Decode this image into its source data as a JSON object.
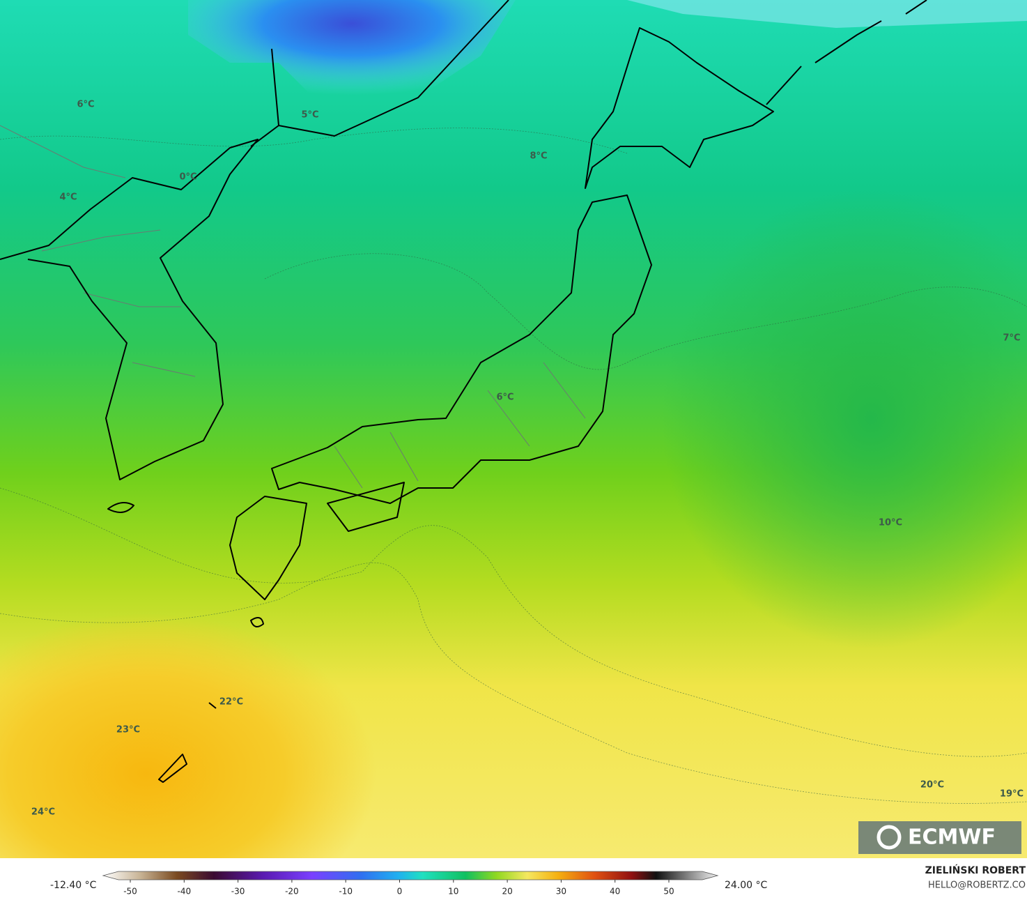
{
  "map": {
    "labels": [
      "6°C",
      "5°C",
      "0°C",
      "4°C",
      "8°C",
      "6°C",
      "7°C",
      "10°C",
      "22°C",
      "23°C",
      "24°C",
      "20°C",
      "19°C"
    ],
    "logo": "ECMWF"
  },
  "colorbar": {
    "min_label": "-12.40 °C",
    "max_label": "24.00 °C",
    "ticks": [
      -50,
      -40,
      -30,
      -20,
      -10,
      0,
      10,
      20,
      30,
      40,
      50
    ]
  },
  "credit": {
    "author": "ZIELIŃSKI ROBERT",
    "contact": "HELLO@ROBERTZ.CO"
  }
}
